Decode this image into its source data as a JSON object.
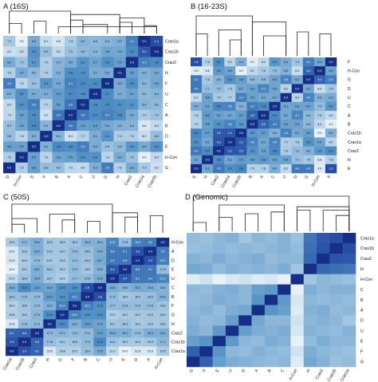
{
  "panels": [
    {
      "key": "A",
      "title": "A (16S)",
      "annotated": true,
      "rows": [
        "Cras1a",
        "Cras1b",
        "Cras2",
        "H",
        "F",
        "U",
        "C",
        "A",
        "B",
        "D",
        "E",
        "H-Con",
        "G"
      ],
      "cols": [
        "D",
        "H-Con",
        "E",
        "F",
        "B",
        "A",
        "C",
        "U",
        "G",
        "H",
        "Cras2",
        "Cras1a",
        "Cras1b"
      ],
      "grid": [
        [
          "7.3",
          "9.0",
          "6.0",
          "8.1",
          "8.6",
          "7.4",
          "6.4",
          "6.6",
          "6.4",
          "6.2",
          "4.1",
          "0.0",
          "1.4"
        ],
        [
          "8.2",
          "8.0",
          "5.0",
          "6.8",
          "8.0",
          "7.0",
          "6.6",
          "6.4",
          "5.8",
          "5.9",
          "4.6",
          "2.0",
          "0.0"
        ],
        [
          "6.0",
          "7.0",
          "5.2",
          "7.5",
          "6.4",
          "6.0",
          "5.1",
          "5.7",
          "4.9",
          "5.5",
          "0.0",
          "4.1",
          "4.6"
        ],
        [
          "7.6",
          "6.0",
          "6.6",
          "7.4",
          "6.3",
          "4.8",
          "4.9",
          "6.1",
          "6.0",
          "0.0",
          "5.5",
          "6.2",
          "5.9"
        ],
        [
          "3.9",
          "7.8",
          "6.9",
          "5.1",
          "5.9",
          "4.1",
          "4.6",
          "4.7",
          "0.0",
          "6.0",
          "4.9",
          "6.4",
          "5.8"
        ],
        [
          "6.2",
          "5.0",
          "6.0",
          "6.1",
          "5.4",
          "4.7",
          "4.8",
          "0.0",
          "4.7",
          "6.1",
          "5.7",
          "6.6",
          "6.4"
        ],
        [
          "8.0",
          "5.0",
          "4.0",
          "7.7",
          "5.5",
          "3.6",
          "0.0",
          "4.8",
          "4.6",
          "4.9",
          "5.1",
          "6.4",
          "6.6"
        ],
        [
          "7.9",
          "5.6",
          "4.8",
          "8.3",
          "3.6",
          "0.0",
          "3.6",
          "4.7",
          "4.1",
          "4.8",
          "6.0",
          "7.4",
          "7.0"
        ],
        [
          "6.9",
          "5.8",
          "4.5",
          "6.4",
          "0.0",
          "3.6",
          "5.5",
          "5.4",
          "5.9",
          "6.3",
          "6.4",
          "8.6",
          "8.0"
        ],
        [
          "6.8",
          "7.8",
          "6.2",
          "0.0",
          "6.4",
          "8.3",
          "7.7",
          "6.1",
          "5.1",
          "7.4",
          "7.5",
          "8.1",
          "6.8"
        ],
        [
          "5.6",
          "5.6",
          "0.0",
          "6.2",
          "4.5",
          "4.8",
          "4.0",
          "6.0",
          "6.9",
          "6.6",
          "5.2",
          "6.0",
          "5.0"
        ],
        [
          "7.5",
          "0.0",
          "5.6",
          "7.8",
          "5.8",
          "5.6",
          "5.0",
          "5.0",
          "7.8",
          "6.0",
          "7.0",
          "9.0",
          "8.0"
        ],
        [
          "0.0",
          "7.5",
          "5.6",
          "6.8",
          "6.9",
          "7.9",
          "8.0",
          "6.2",
          "3.9",
          "7.6",
          "6.0",
          "7.3",
          "8.2"
        ]
      ]
    },
    {
      "key": "B",
      "title": "B (16-23S)",
      "annotated": true,
      "rows": [
        "F",
        "H-Con",
        "G",
        "D",
        "U",
        "C",
        "A",
        "B",
        "Cras1b",
        "Cras1a",
        "Cras2",
        "H",
        "E"
      ],
      "cols": [
        "E",
        "H",
        "Cras2",
        "Cras1a",
        "Cras1b",
        "B",
        "A",
        "C",
        "U",
        "D",
        "G",
        "H-Con",
        "F"
      ],
      "grid": [
        [
          "1.8",
          "7.8",
          "5.1",
          "8.0",
          "6.4",
          "9.1",
          "8.2",
          "5.5",
          "6.3",
          "7.4",
          "4.2",
          "6.0",
          "0.0"
        ],
        [
          "9.0",
          "8.8",
          "5.6",
          "6.0",
          "9.2",
          "8.1",
          "7.6",
          "7.0",
          "6.5",
          "8.4",
          "3.0",
          "0.0",
          "6.0"
        ],
        [
          "4.0",
          "7.5",
          "6.6",
          "5.3",
          "5.8",
          "6.8",
          "6.8",
          "6.0",
          "4.6",
          "6.2",
          "0.0",
          "3.0",
          "4.2"
        ],
        [
          "4.0",
          "7.1",
          "7.0",
          "7.5",
          "6.2",
          "5.9",
          "4.7",
          "6.0",
          "8.0",
          "0.0",
          "6.2",
          "8.4",
          "7.4"
        ],
        [
          "8.2",
          "5.9",
          "7.6",
          "7.7",
          "4.4",
          "5.9",
          "6.2",
          "6.1",
          "0.0",
          "8.0",
          "4.6",
          "6.5",
          "6.3"
        ],
        [
          "6.4",
          "5.9",
          "4.8",
          "4.6",
          "6.5",
          "4.2",
          "4.9",
          "0.0",
          "6.1",
          "6.0",
          "6.0",
          "7.0",
          "5.5"
        ],
        [
          "7.8",
          "5.6",
          "5.9",
          "6.1",
          "5.7",
          "3.0",
          "0.0",
          "4.9",
          "6.2",
          "4.7",
          "6.8",
          "7.6",
          "8.2"
        ],
        [
          "7.9",
          "5.8",
          "5.3",
          "4.6",
          "5.5",
          "0.0",
          "3.0",
          "4.2",
          "5.9",
          "5.9",
          "6.8",
          "8.1",
          "9.1"
        ],
        [
          "4.8",
          "5.7",
          "2.5",
          "2.3",
          "0.0",
          "5.5",
          "5.7",
          "6.5",
          "4.4",
          "6.2",
          "5.8",
          "9.2",
          "6.4"
        ],
        [
          "5.2",
          "6.1",
          "2.3",
          "0.0",
          "2.3",
          "4.6",
          "6.1",
          "4.6",
          "7.7",
          "7.5",
          "5.3",
          "6.0",
          "8.0"
        ],
        [
          "4.0",
          "5.0",
          "0.0",
          "2.3",
          "2.5",
          "5.3",
          "5.9",
          "4.8",
          "7.6",
          "7.0",
          "6.6",
          "5.6",
          "5.1"
        ],
        [
          "6.1",
          "0.0",
          "5.0",
          "6.1",
          "5.7",
          "5.8",
          "5.6",
          "5.9",
          "5.9",
          "7.1",
          "7.5",
          "8.8",
          "7.8"
        ],
        [
          "0.0",
          "6.1",
          "4.0",
          "5.2",
          "4.8",
          "7.9",
          "7.8",
          "6.4",
          "8.2",
          "4.0",
          "4.0",
          "9.0",
          "1.8"
        ]
      ]
    },
    {
      "key": "C",
      "title": "C (50S)",
      "annotated": true,
      "rows": [
        "H-Con",
        "A",
        "D",
        "E",
        "U",
        "C",
        "B",
        "F",
        "G",
        "H",
        "Cras2",
        "Cras1b",
        "Cras1a"
      ],
      "cols": [
        "Cras1a",
        "Cras1b",
        "Cras2",
        "H",
        "G",
        "F",
        "B",
        "C",
        "U",
        "E",
        "D",
        "A",
        "H-Con"
      ],
      "grid": [
        [
          "19.5",
          "17.1",
          "16.0",
          "18.9",
          "18.9",
          "18.4",
          "16.4",
          "16.4",
          "11.2",
          "17.8",
          "10.0",
          "9.5",
          "0.0"
        ],
        [
          "23.0",
          "19.0",
          "16.0",
          "19.0",
          "19.0",
          "17.6",
          "18.0",
          "15.9",
          "9.4",
          "9.1",
          "3.3",
          "0.0",
          "9.5"
        ],
        [
          "22.8",
          "19.4",
          "17.5",
          "19.2",
          "19.2",
          "17.9",
          "18.4",
          "15.7",
          "9.2",
          "8.9",
          "0.0",
          "3.3",
          "10.0"
        ],
        [
          "24.0",
          "19.2",
          "16.1",
          "18.3",
          "19.2",
          "17.6",
          "18.9",
          "16.5",
          "4.4",
          "0.0",
          "8.9",
          "9.1",
          "17.8"
        ],
        [
          "21.0",
          "18.4",
          "15.8",
          "18.7",
          "19.9",
          "17.7",
          "17.6",
          "15.6",
          "0.0",
          "4.4",
          "9.2",
          "9.4",
          "11.2"
        ],
        [
          "15.6",
          "11.5",
          "14.2",
          "14.9",
          "12.6",
          "12.6",
          "2.8",
          "0.0",
          "15.6",
          "16.5",
          "15.7",
          "15.9",
          "16.4"
        ],
        [
          "18.0",
          "17.5",
          "17.5",
          "14.0",
          "12.8",
          "10.1",
          "0.0",
          "2.8",
          "17.6",
          "18.9",
          "18.4",
          "18.0",
          "16.4"
        ],
        [
          "20.0",
          "18.6",
          "17.5",
          "16.2",
          "10.4",
          "0.0",
          "10.1",
          "12.6",
          "17.7",
          "17.6",
          "17.9",
          "17.6",
          "18.4"
        ],
        [
          "19.8",
          "19.0",
          "17.0",
          "12.0",
          "0.0",
          "10.4",
          "12.8",
          "12.6",
          "19.9",
          "19.2",
          "19.2",
          "19.0",
          "18.9"
        ],
        [
          "22.8",
          "17.8",
          "17.3",
          "0.0",
          "12.0",
          "16.2",
          "14.0",
          "14.9",
          "18.7",
          "18.3",
          "19.2",
          "19.0",
          "18.9"
        ],
        [
          "6.2",
          "5.8",
          "0.0",
          "17.3",
          "17.0",
          "17.5",
          "17.5",
          "14.2",
          "15.8",
          "16.1",
          "17.5",
          "16.0",
          "16.0"
        ],
        [
          "3.9",
          "0.0",
          "5.8",
          "17.8",
          "19.0",
          "18.6",
          "17.5",
          "11.5",
          "18.4",
          "19.2",
          "19.4",
          "19.0",
          "17.1"
        ],
        [
          "0.0",
          "3.9",
          "6.2",
          "22.8",
          "19.8",
          "20.0",
          "18.0",
          "15.6",
          "21.0",
          "24.0",
          "22.8",
          "23.0",
          "19.5"
        ]
      ]
    },
    {
      "key": "D",
      "title": "D (Genomic)",
      "annotated": false,
      "rows": [
        "Cras1a",
        "Cras1b",
        "Cras2",
        "H",
        "H-Con",
        "C",
        "B",
        "A",
        "D",
        "U",
        "E",
        "F",
        "G"
      ],
      "cols": [
        "G",
        "F",
        "E",
        "U",
        "D",
        "A",
        "B",
        "C",
        "H-Con",
        "H",
        "Cras2",
        "Cras1b",
        "Cras1a"
      ],
      "grid": [
        [
          "0.62",
          "0.64",
          "0.60",
          "0.58",
          "0.66",
          "0.60",
          "0.62",
          "0.58",
          "0.64",
          "0.30",
          "0.16",
          "0.10",
          "0.00"
        ],
        [
          "0.64",
          "0.62",
          "0.60",
          "0.62",
          "0.60",
          "0.62",
          "0.60",
          "0.58",
          "0.62",
          "0.28",
          "0.14",
          "0.00",
          "0.10"
        ],
        [
          "0.58",
          "0.60",
          "0.56",
          "0.60",
          "0.58",
          "0.56",
          "0.62",
          "0.60",
          "0.60",
          "0.24",
          "0.00",
          "0.14",
          "0.16"
        ],
        [
          "0.54",
          "0.56",
          "0.62",
          "0.58",
          "0.60",
          "0.58",
          "0.60",
          "0.56",
          "0.66",
          "0.00",
          "0.24",
          "0.28",
          "0.30"
        ],
        [
          "0.82",
          "0.78",
          "0.84",
          "0.80",
          "0.78",
          "0.82",
          "0.80",
          "0.84",
          "0.00",
          "0.66",
          "0.60",
          "0.62",
          "0.64"
        ],
        [
          "0.60",
          "0.62",
          "0.58",
          "0.56",
          "0.60",
          "0.50",
          "0.48",
          "0.00",
          "0.84",
          "0.56",
          "0.60",
          "0.58",
          "0.58"
        ],
        [
          "0.62",
          "0.60",
          "0.56",
          "0.58",
          "0.60",
          "0.46",
          "0.00",
          "0.48",
          "0.80",
          "0.60",
          "0.62",
          "0.60",
          "0.62"
        ],
        [
          "0.60",
          "0.58",
          "0.62",
          "0.56",
          "0.54",
          "0.00",
          "0.46",
          "0.50",
          "0.82",
          "0.58",
          "0.56",
          "0.62",
          "0.60"
        ],
        [
          "0.58",
          "0.62",
          "0.60",
          "0.50",
          "0.00",
          "0.54",
          "0.60",
          "0.60",
          "0.78",
          "0.60",
          "0.58",
          "0.60",
          "0.66"
        ],
        [
          "0.56",
          "0.60",
          "0.48",
          "0.00",
          "0.50",
          "0.56",
          "0.58",
          "0.56",
          "0.80",
          "0.58",
          "0.60",
          "0.62",
          "0.58"
        ],
        [
          "0.50",
          "0.46",
          "0.00",
          "0.48",
          "0.60",
          "0.62",
          "0.56",
          "0.58",
          "0.84",
          "0.62",
          "0.56",
          "0.60",
          "0.60"
        ],
        [
          "0.20",
          "0.00",
          "0.46",
          "0.60",
          "0.62",
          "0.58",
          "0.60",
          "0.62",
          "0.78",
          "0.56",
          "0.60",
          "0.62",
          "0.64"
        ],
        [
          "0.00",
          "0.20",
          "0.50",
          "0.56",
          "0.58",
          "0.60",
          "0.62",
          "0.60",
          "0.82",
          "0.54",
          "0.58",
          "0.64",
          "0.62"
        ]
      ]
    }
  ],
  "colors": {
    "low": "#1f3f9e",
    "mid": "#4f8fc4",
    "high": "#e6f1f8",
    "text_dark": "#111111",
    "text_light": "#ffffff"
  }
}
